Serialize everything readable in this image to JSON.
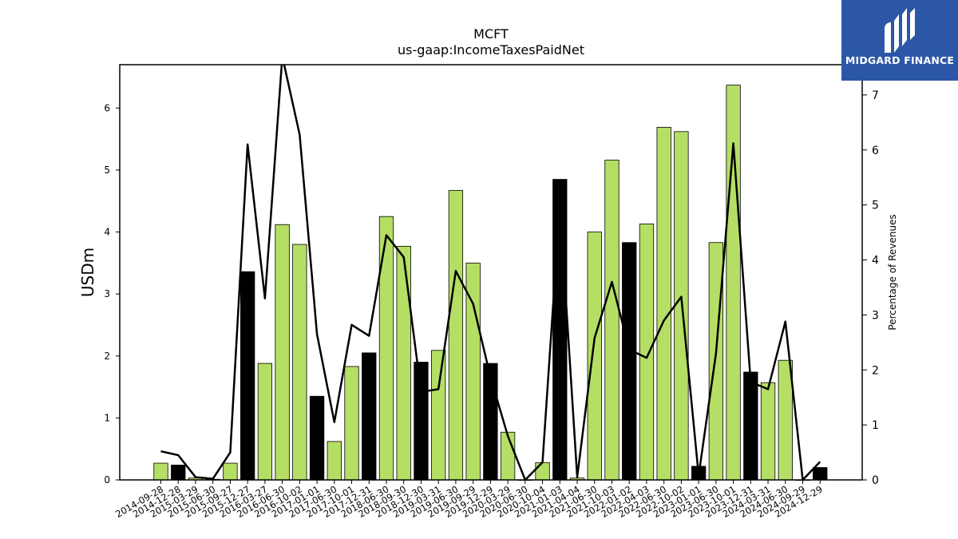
{
  "chart_data": {
    "type": "bar",
    "title": "MCFT",
    "subtitle": "us-gaap:IncomeTaxesPaidNet",
    "ylabel": "USDm",
    "y2label": "Percentage of Revenues",
    "ylim": [
      0,
      6.7
    ],
    "y2lim": [
      0,
      7.55
    ],
    "yticks": [
      "0",
      "1",
      "2",
      "3",
      "4",
      "5",
      "6"
    ],
    "y2ticks": [
      "0",
      "1",
      "2",
      "3",
      "4",
      "5",
      "6",
      "7"
    ],
    "categories": [
      "2014-09-28",
      "2014-12-28",
      "2015-03-29",
      "2015-06-30",
      "2015-09-27",
      "2015-12-27",
      "2016-03-27",
      "2016-06-30",
      "2016-10-02",
      "2017-01-01",
      "2017-06-30",
      "2017-10-01",
      "2017-12-31",
      "2018-06-30",
      "2018-09-30",
      "2018-12-30",
      "2019-03-31",
      "2019-06-30",
      "2019-09-29",
      "2019-12-29",
      "2020-03-29",
      "2020-06-30",
      "2020-10-04",
      "2021-01-03",
      "2021-04-04",
      "2021-06-30",
      "2021-10-03",
      "2022-01-02",
      "2022-04-03",
      "2022-06-30",
      "2022-10-02",
      "2023-01-01",
      "2023-06-30",
      "2023-10-01",
      "2023-12-31",
      "2024-03-31",
      "2024-06-30",
      "2024-09-29",
      "2024-12-29"
    ],
    "series": [
      {
        "values": [
          0.27,
          0.24,
          0.03,
          0.01,
          0.27,
          3.36,
          1.88,
          4.12,
          3.8,
          1.35,
          0.62,
          1.83,
          2.05,
          4.25,
          3.77,
          1.9,
          2.09,
          4.67,
          3.5,
          1.88,
          0.77,
          0.0,
          0.28,
          4.85,
          0.03,
          4.0,
          5.16,
          3.83,
          4.13,
          5.69,
          5.62,
          0.22,
          3.83,
          6.37,
          1.74,
          1.57,
          1.93,
          0.0,
          0.2
        ],
        "colors": [
          "#b5de65",
          "#000000",
          "#b5de65",
          "#b5de65",
          "#b5de65",
          "#000000",
          "#b5de65",
          "#b5de65",
          "#b5de65",
          "#000000",
          "#b5de65",
          "#b5de65",
          "#000000",
          "#b5de65",
          "#b5de65",
          "#000000",
          "#b5de65",
          "#b5de65",
          "#b5de65",
          "#000000",
          "#b5de65",
          "#b5de65",
          "#b5de65",
          "#000000",
          "#b5de65",
          "#b5de65",
          "#b5de65",
          "#000000",
          "#b5de65",
          "#b5de65",
          "#b5de65",
          "#000000",
          "#b5de65",
          "#b5de65",
          "#000000",
          "#b5de65",
          "#b5de65",
          "#b5de65",
          "#000000"
        ]
      },
      {
        "axis": "right",
        "type": "line",
        "values": [
          0.52,
          0.45,
          0.05,
          0.02,
          0.5,
          6.1,
          3.3,
          7.7,
          6.28,
          2.65,
          1.05,
          2.82,
          2.62,
          4.45,
          4.05,
          1.6,
          1.65,
          3.8,
          3.2,
          1.87,
          0.8,
          0.0,
          0.32,
          5.0,
          0.05,
          2.58,
          3.6,
          2.37,
          2.22,
          2.9,
          3.33,
          0.08,
          2.3,
          6.12,
          1.78,
          1.65,
          2.88,
          0.0,
          0.33
        ],
        "color": "#000000"
      }
    ],
    "legend": "none",
    "grid": false
  },
  "logo": {
    "text": "MIDGARD FINANCE",
    "background": "#2c57a8"
  }
}
